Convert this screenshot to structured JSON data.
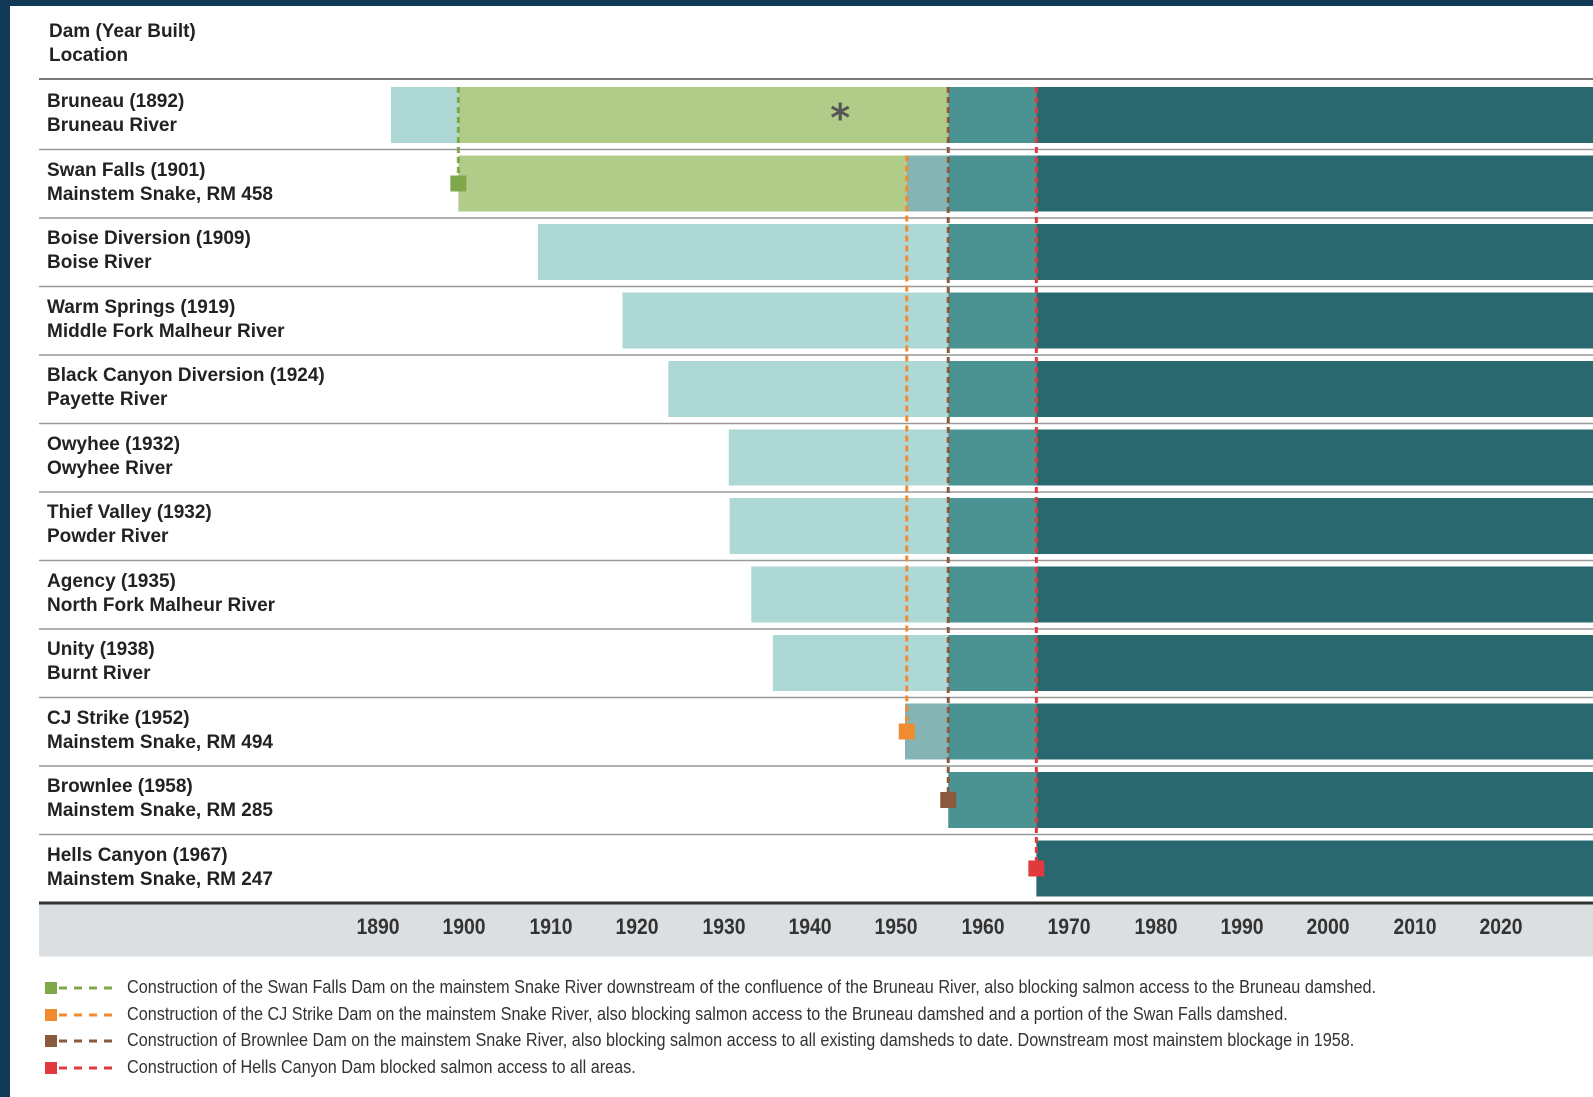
{
  "header": {
    "line1": "Dam (Year Built)",
    "line2": "Location"
  },
  "colors": {
    "light_bar": "#add8d6",
    "green_bar": "#b1cb89",
    "grey_teal_bar": "#84b4b3",
    "mid_teal_bar": "#4a9392",
    "dark_teal_bar": "#2a6870",
    "axis_band": "#dcdfe1",
    "green": "#7fa84b",
    "orange": "#f28a30",
    "brown": "#8a5a3c",
    "red": "#e0393e"
  },
  "chart_data": {
    "type": "timeline",
    "x_ticks": [
      "1890",
      "1900",
      "1910",
      "1920",
      "1930",
      "1940",
      "1950",
      "1960",
      "1970",
      "1980",
      "1990",
      "2000",
      "2010",
      "2020"
    ],
    "xlim": [
      1889,
      2024
    ],
    "rows": [
      {
        "name": "Bruneau (1892)",
        "location": "Bruneau River",
        "start": 1891.5,
        "green_from": 1899.3,
        "green_to": 1956.0,
        "asterisk": "*"
      },
      {
        "name": "Swan Falls (1901)",
        "location": "Mainstem Snake, RM 458",
        "start": 1899.3,
        "green_from": 1899.3,
        "green_to": 1951.2,
        "marker": "green"
      },
      {
        "name": "Boise Diversion (1909)",
        "location": "Boise River",
        "start": 1908.5
      },
      {
        "name": "Warm Springs (1919)",
        "location": "Middle Fork Malheur River",
        "start": 1918.3
      },
      {
        "name": "Black Canyon Diversion (1924)",
        "location": "Payette River",
        "start": 1923.6
      },
      {
        "name": "Owyhee (1932)",
        "location": "Owyhee River",
        "start": 1930.6
      },
      {
        "name": "Thief Valley (1932)",
        "location": "Powder River",
        "start": 1930.7
      },
      {
        "name": "Agency (1935)",
        "location": "North Fork Malheur River",
        "start": 1933.2
      },
      {
        "name": "Unity (1938)",
        "location": "Burnt River",
        "start": 1935.7
      },
      {
        "name": "CJ Strike (1952)",
        "location": "Mainstem Snake, RM 494",
        "start": 1951.0,
        "marker": "orange"
      },
      {
        "name": "Brownlee (1958)",
        "location": "Mainstem Snake, RM 285",
        "start": 1956.0,
        "marker": "brown"
      },
      {
        "name": "Hells Canyon (1967)",
        "location": "Mainstem Snake, RM 247",
        "start": 1966.2,
        "marker": "red"
      }
    ],
    "blockages": [
      {
        "color": "green",
        "year": 1899.3
      },
      {
        "color": "orange",
        "year": 1951.2
      },
      {
        "color": "brown",
        "year": 1956.0
      },
      {
        "color": "red",
        "year": 1966.2
      }
    ]
  },
  "legend": [
    {
      "color": "green",
      "text": "Construction of the Swan Falls Dam on the mainstem Snake River downstream of the confluence of the Bruneau River, also blocking salmon access to the Bruneau damshed."
    },
    {
      "color": "orange",
      "text": "Construction of the CJ Strike Dam on the mainstem Snake River, also blocking salmon access to the Bruneau damshed and a portion of the Swan Falls damshed."
    },
    {
      "color": "brown",
      "text": "Construction of Brownlee Dam on the mainstem Snake River, also blocking salmon access to all existing damsheds to date. Downstream most mainstem blockage in 1958."
    },
    {
      "color": "red",
      "text": "Construction of Hells Canyon Dam blocked salmon access to all areas."
    }
  ]
}
